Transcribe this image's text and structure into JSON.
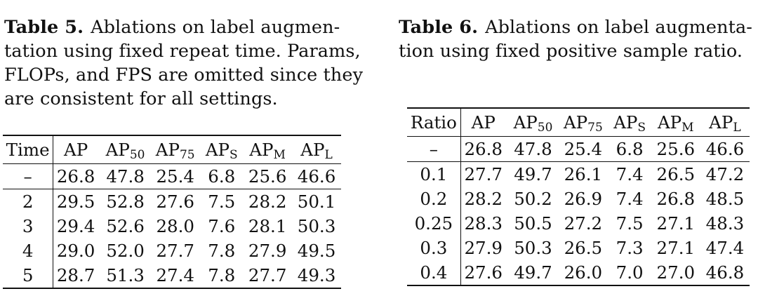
{
  "table5": {
    "caption_label": "Table 5.",
    "caption_lines": [
      "Ablations on label augmen-",
      "tation using fixed repeat time. Params,",
      "FLOPs, and FPS are omitted since they",
      "are consistent for all settings."
    ],
    "first_col": "Time",
    "header_main": [
      "AP",
      "AP",
      "AP",
      "AP",
      "AP",
      "AP"
    ],
    "header_sub": [
      "",
      "50",
      "75",
      "S",
      "M",
      "L"
    ],
    "baseline": [
      "–",
      "26.8",
      "47.8",
      "25.4",
      "6.8",
      "25.6",
      "46.6"
    ],
    "rows": [
      [
        "2",
        "29.5",
        "52.8",
        "27.6",
        "7.5",
        "28.2",
        "50.1"
      ],
      [
        "3",
        "29.4",
        "52.6",
        "28.0",
        "7.6",
        "28.1",
        "50.3"
      ],
      [
        "4",
        "29.0",
        "52.0",
        "27.7",
        "7.8",
        "27.9",
        "49.5"
      ],
      [
        "5",
        "28.7",
        "51.3",
        "27.4",
        "7.8",
        "27.7",
        "49.3"
      ]
    ]
  },
  "table6": {
    "caption_label": "Table 6.",
    "caption_lines": [
      "Ablations on label augmenta-",
      "tion using fixed positive sample ratio."
    ],
    "first_col": "Ratio",
    "header_main": [
      "AP",
      "AP",
      "AP",
      "AP",
      "AP",
      "AP"
    ],
    "header_sub": [
      "",
      "50",
      "75",
      "S",
      "M",
      "L"
    ],
    "baseline": [
      "–",
      "26.8",
      "47.8",
      "25.4",
      "6.8",
      "25.6",
      "46.6"
    ],
    "rows": [
      [
        "0.1",
        "27.7",
        "49.7",
        "26.1",
        "7.4",
        "26.5",
        "47.2"
      ],
      [
        "0.2",
        "28.2",
        "50.2",
        "26.9",
        "7.4",
        "26.8",
        "48.5"
      ],
      [
        "0.25",
        "28.3",
        "50.5",
        "27.2",
        "7.5",
        "27.1",
        "48.3"
      ],
      [
        "0.3",
        "27.9",
        "50.3",
        "26.5",
        "7.3",
        "27.1",
        "47.4"
      ],
      [
        "0.4",
        "27.6",
        "49.7",
        "26.0",
        "7.0",
        "27.0",
        "46.8"
      ]
    ]
  }
}
